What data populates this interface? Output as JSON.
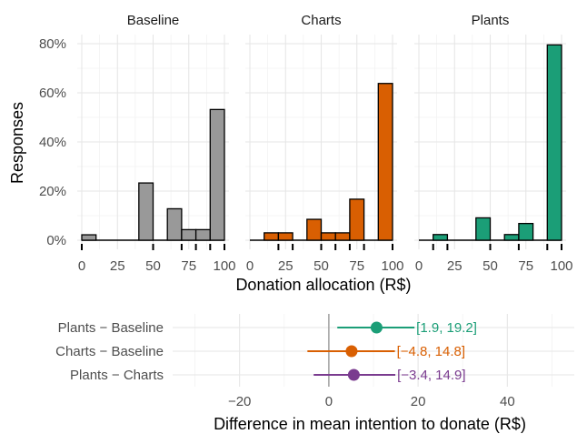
{
  "chart_data": [
    {
      "type": "bar",
      "kind": "faceted-histogram",
      "xlabel": "Donation allocation (R$)",
      "ylabel": "Responses",
      "xlim": [
        0,
        100
      ],
      "ylim": [
        0,
        0.8
      ],
      "x_ticks": [
        "0",
        "25",
        "50",
        "75",
        "100"
      ],
      "x_tick_values": [
        0,
        25,
        50,
        75,
        100
      ],
      "y_ticks": [
        "0%",
        "20%",
        "40%",
        "60%",
        "80%"
      ],
      "y_tick_values": [
        0,
        0.2,
        0.4,
        0.6,
        0.8
      ],
      "bin_width": 10,
      "bins": [
        0,
        10,
        20,
        30,
        40,
        50,
        60,
        70,
        80,
        90
      ],
      "facets": [
        {
          "name": "Baseline",
          "color": "#999999",
          "values": [
            0.022,
            0.0,
            0.0,
            0.0,
            0.233,
            0.0,
            0.128,
            0.043,
            0.043,
            0.532
          ],
          "rug": [
            0,
            50,
            70,
            80,
            90,
            100
          ]
        },
        {
          "name": "Charts",
          "color": "#d95f02",
          "values": [
            0.0,
            0.03,
            0.03,
            0.0,
            0.085,
            0.03,
            0.03,
            0.167,
            0.0,
            0.638
          ],
          "rug": [
            20,
            30,
            50,
            60,
            70,
            80,
            100
          ]
        },
        {
          "name": "Plants",
          "color": "#1b9e77",
          "values": [
            0.0,
            0.023,
            0.0,
            0.0,
            0.091,
            0.0,
            0.023,
            0.068,
            0.0,
            0.795
          ],
          "rug": [
            10,
            20,
            50,
            70,
            90,
            100
          ]
        }
      ]
    },
    {
      "type": "scatter",
      "kind": "point-range",
      "xlabel": "Difference in mean intention to donate (R$)",
      "xlim": [
        -35,
        55
      ],
      "x_ticks": [
        "−20",
        "0",
        "20",
        "40"
      ],
      "x_tick_values": [
        -20,
        0,
        20,
        40
      ],
      "reference_line_x": 0,
      "rows": [
        {
          "label": "Plants − Baseline",
          "estimate": 10.7,
          "lower": 1.9,
          "upper": 19.2,
          "ci_text": "[1.9, 19.2]",
          "color": "#1b9e77"
        },
        {
          "label": "Charts − Baseline",
          "estimate": 5.1,
          "lower": -4.8,
          "upper": 14.8,
          "ci_text": "[−4.8, 14.8]",
          "color": "#d95f02"
        },
        {
          "label": "Plants − Charts",
          "estimate": 5.6,
          "lower": -3.4,
          "upper": 14.9,
          "ci_text": "[−3.4, 14.9]",
          "color": "#7a3b8f"
        }
      ]
    }
  ]
}
